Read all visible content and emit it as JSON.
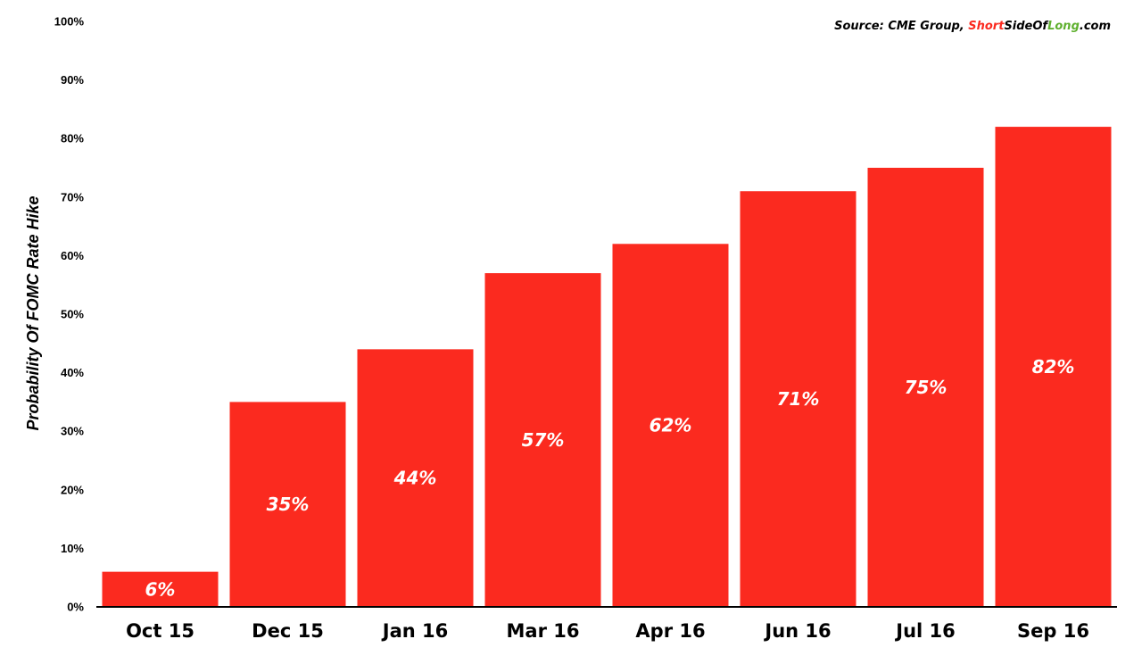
{
  "chart_data": {
    "type": "bar",
    "categories": [
      "Oct 15",
      "Dec 15",
      "Jan 16",
      "Mar 16",
      "Apr 16",
      "Jun 16",
      "Jul 16",
      "Sep 16"
    ],
    "values": [
      6,
      35,
      44,
      57,
      62,
      71,
      75,
      82
    ],
    "data_labels": [
      "6%",
      "35%",
      "44%",
      "57%",
      "62%",
      "71%",
      "75%",
      "82%"
    ],
    "ylabel": "Probability Of FOMC Rate Hike",
    "xlabel": "",
    "ylim": [
      0,
      100
    ],
    "yticks": [
      0,
      10,
      20,
      30,
      40,
      50,
      60,
      70,
      80,
      90,
      100
    ],
    "ytick_labels": [
      "0%",
      "10%",
      "20%",
      "30%",
      "40%",
      "50%",
      "60%",
      "70%",
      "80%",
      "90%",
      "100%"
    ],
    "grid": false,
    "legend": "none",
    "bar_color": "#fb2a1f",
    "source": {
      "prefix": "Source: CME Group, ",
      "short": "Short",
      "side_of": "SideOf",
      "long": "Long",
      "suffix": ".com",
      "short_color": "#fb2a1f",
      "long_color": "#5fb02f"
    }
  }
}
